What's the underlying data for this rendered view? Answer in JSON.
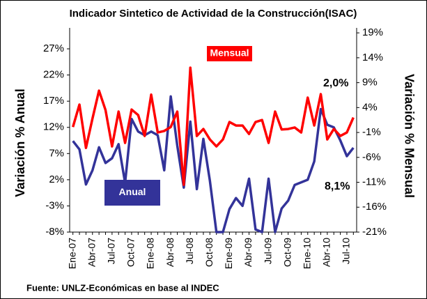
{
  "chart_data": {
    "type": "line",
    "title": "Indicador Sintetico de Actividad de la Construcción(ISAC)",
    "ylabel": "Variación % Anual",
    "y2label": "Variación % Mensual",
    "source": "Fuente: UNLZ-Económicas en base al INDEC",
    "categories": [
      "Ene-07",
      null,
      null,
      "Abr-07",
      null,
      null,
      "Jul-07",
      null,
      null,
      "Oct-07",
      null,
      null,
      "Ene-08",
      null,
      null,
      "Abr-08",
      null,
      null,
      "Jul-08",
      null,
      null,
      "Oct-08",
      null,
      null,
      "Ene-09",
      null,
      null,
      "Abr-09",
      null,
      null,
      "Jul-09",
      null,
      null,
      "Oct-09",
      null,
      null,
      "Ene-10",
      null,
      null,
      "Abr-10",
      null,
      null,
      "Jul-10",
      null
    ],
    "series": [
      {
        "name": "Anual",
        "color": "#333399",
        "axis": "y",
        "values": [
          9.4,
          7.8,
          1.1,
          3.8,
          8.2,
          5.2,
          6.1,
          8.8,
          1.4,
          13.6,
          11.2,
          10.5,
          11.2,
          10.5,
          3.8,
          17.9,
          8.5,
          0.5,
          13.1,
          0.2,
          9.8,
          1.8,
          -8,
          -8,
          -3.6,
          -1.5,
          -3,
          2.2,
          -7.5,
          -8,
          2.2,
          -8,
          -3.5,
          -2,
          1,
          1.5,
          2,
          5.5,
          15.5,
          12.5,
          12,
          9.5,
          6.5,
          8.1
        ]
      },
      {
        "name": "Mensual",
        "color": "#ff0000",
        "axis": "y2",
        "values": [
          0.1,
          4.6,
          -4.1,
          1.8,
          7.4,
          3.5,
          -3.8,
          3.2,
          -3.1,
          3.6,
          2.5,
          -1.7,
          6.6,
          -1,
          -0.7,
          0.1,
          3.2,
          -11.5,
          12,
          -1.7,
          -0.3,
          -2.4,
          -3.8,
          -2.4,
          1.1,
          0.4,
          0.4,
          -1.3,
          1.1,
          1.5,
          -3.1,
          3.2,
          -0.4,
          -0.3,
          0,
          -1,
          6,
          0.4,
          6.7,
          -2.4,
          -0.3,
          -1.7,
          -1,
          2
        ]
      }
    ],
    "annotations": [
      "2,0%",
      "8,1%"
    ],
    "ylim": [
      -8,
      31
    ],
    "yticks": [
      {
        "value": -8,
        "label": "-8%"
      },
      {
        "value": -3,
        "label": "-3%"
      },
      {
        "value": 2,
        "label": "2%"
      },
      {
        "value": 7,
        "label": "7%"
      },
      {
        "value": 12,
        "label": "12%"
      },
      {
        "value": 17,
        "label": "17%"
      },
      {
        "value": 22,
        "label": "22%"
      },
      {
        "value": 27,
        "label": "27%"
      }
    ],
    "y2lim": [
      -21,
      20
    ],
    "y2ticks": [
      {
        "value": -21,
        "label": "-21%"
      },
      {
        "value": -16,
        "label": "-16%"
      },
      {
        "value": -11,
        "label": "-11%"
      },
      {
        "value": -6,
        "label": "-6%"
      },
      {
        "value": -1,
        "label": "-1%"
      },
      {
        "value": 4,
        "label": "4%"
      },
      {
        "value": 9,
        "label": "9%"
      },
      {
        "value": 14,
        "label": "14%"
      },
      {
        "value": 19,
        "label": "19%"
      }
    ],
    "grid": false
  }
}
